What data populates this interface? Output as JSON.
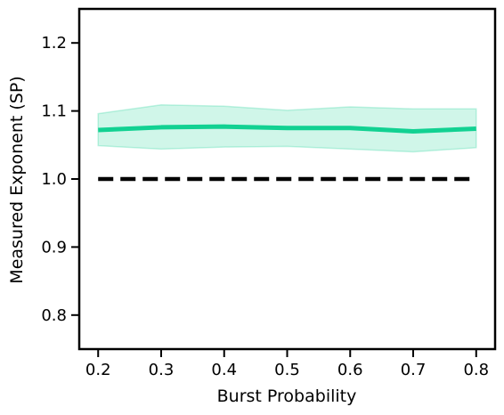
{
  "chart_data": {
    "type": "line",
    "title": "",
    "xlabel": "Burst Probability",
    "ylabel": "Measured Exponent (SP)",
    "xlim": [
      0.17,
      0.83
    ],
    "ylim": [
      0.75,
      1.25
    ],
    "xticks": [
      0.2,
      0.3,
      0.4,
      0.5,
      0.6,
      0.7,
      0.8
    ],
    "xtick_labels": [
      "0.2",
      "0.3",
      "0.4",
      "0.5",
      "0.6",
      "0.7",
      "0.8"
    ],
    "yticks": [
      0.8,
      0.9,
      1.0,
      1.1,
      1.2
    ],
    "ytick_labels": [
      "0.8",
      "0.9",
      "1.0",
      "1.1",
      "1.2"
    ],
    "grid": false,
    "series": [
      {
        "name": "measured",
        "color": "#12d192",
        "band_color": "#12d192",
        "x": [
          0.2,
          0.3,
          0.4,
          0.5,
          0.6,
          0.7,
          0.8
        ],
        "values": [
          1.072,
          1.076,
          1.077,
          1.075,
          1.075,
          1.07,
          1.074
        ],
        "lower": [
          1.049,
          1.044,
          1.047,
          1.048,
          1.044,
          1.04,
          1.046
        ],
        "upper": [
          1.096,
          1.109,
          1.107,
          1.101,
          1.106,
          1.103,
          1.103
        ]
      },
      {
        "name": "reference",
        "color": "#000000",
        "style": "dashed",
        "x": [
          0.2,
          0.8
        ],
        "values": [
          1.0,
          1.0
        ]
      }
    ]
  }
}
